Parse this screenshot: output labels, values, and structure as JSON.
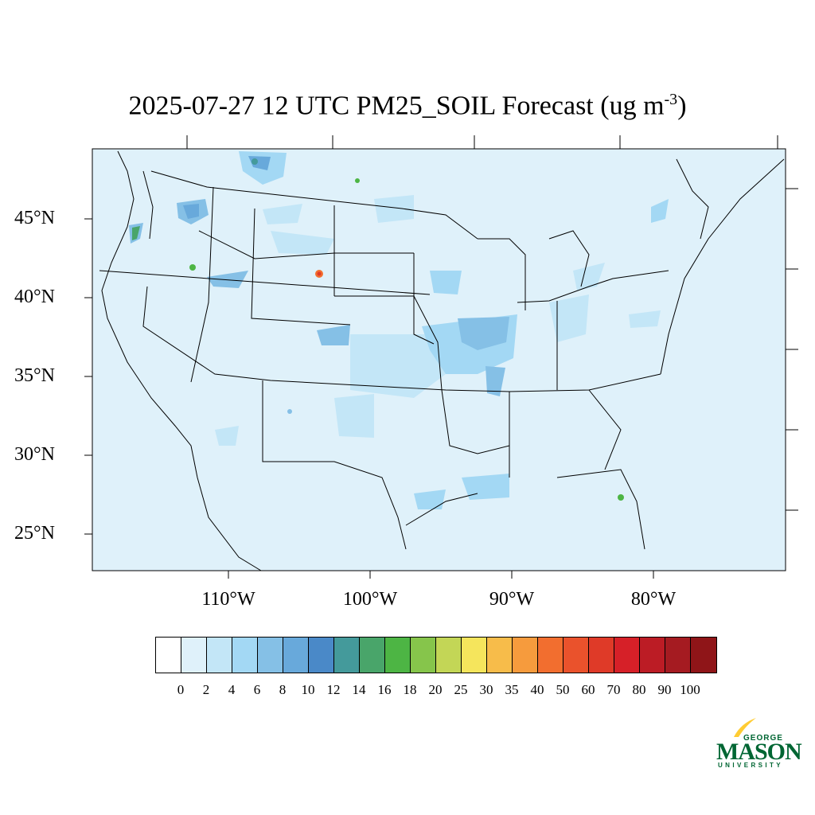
{
  "title": {
    "text": "2025-07-27 12 UTC PM25_SOIL Forecast (ug m",
    "superscript": "-3",
    "closing": ")"
  },
  "map": {
    "background_color": "#dff1fa",
    "latitude_labels": [
      "45°N",
      "40°N",
      "35°N",
      "30°N",
      "25°N"
    ],
    "longitude_labels": [
      "110°W",
      "100°W",
      "90°W",
      "80°W"
    ]
  },
  "colorbar": {
    "labels": [
      "0",
      "2",
      "4",
      "6",
      "8",
      "10",
      "12",
      "14",
      "16",
      "18",
      "20",
      "25",
      "30",
      "35",
      "40",
      "50",
      "60",
      "70",
      "80",
      "90",
      "100"
    ],
    "colors": [
      "#ffffff",
      "#dff1fa",
      "#c3e6f7",
      "#a3d8f4",
      "#85c0e6",
      "#68a9db",
      "#4a89c8",
      "#449a9b",
      "#49a56a",
      "#4db544",
      "#86c54b",
      "#c3d656",
      "#f5e55c",
      "#f7bc4a",
      "#f69b3d",
      "#f26e2f",
      "#ea522c",
      "#df3a28",
      "#d62028",
      "#bc1c25",
      "#a51b21",
      "#8f1518"
    ]
  },
  "logo": {
    "line1": "GEORGE",
    "line2": "MASON",
    "line3": "UNIVERSITY",
    "brand_green": "#006633",
    "brand_gold": "#ffcc33"
  }
}
